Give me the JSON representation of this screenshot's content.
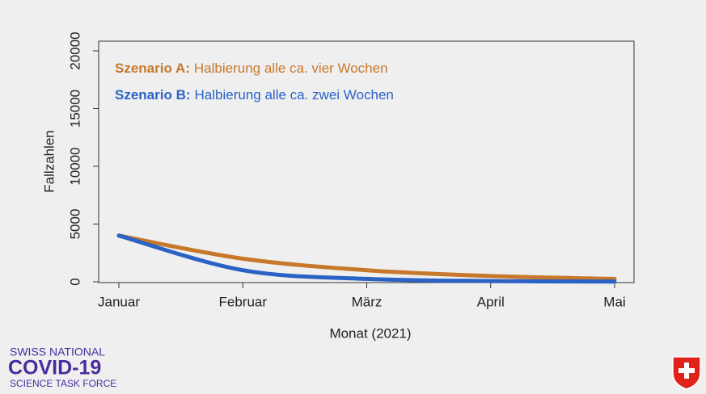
{
  "chart_data": {
    "type": "line",
    "x_label": "Monat (2021)",
    "y_label": "Fallzahlen",
    "categories": [
      "Januar",
      "Februar",
      "März",
      "April",
      "Mai"
    ],
    "series": [
      {
        "name": "Szenario A:",
        "label": "Halbierung alle ca. vier Wochen",
        "color": "#c7782b",
        "values": [
          4000,
          2000,
          1000,
          500,
          250
        ]
      },
      {
        "name": "Szenario B:",
        "label": "Halbierung alle ca. zwei Wochen",
        "color": "#2a62c6",
        "values": [
          4000,
          1000,
          250,
          62,
          16
        ]
      }
    ],
    "ylim": [
      0,
      20000
    ],
    "yticks": [
      0,
      5000,
      10000,
      15000,
      20000
    ]
  },
  "logo": {
    "line1": "SWISS NATIONAL",
    "line2": "COVID-19",
    "line3": "SCIENCE TASK FORCE"
  }
}
